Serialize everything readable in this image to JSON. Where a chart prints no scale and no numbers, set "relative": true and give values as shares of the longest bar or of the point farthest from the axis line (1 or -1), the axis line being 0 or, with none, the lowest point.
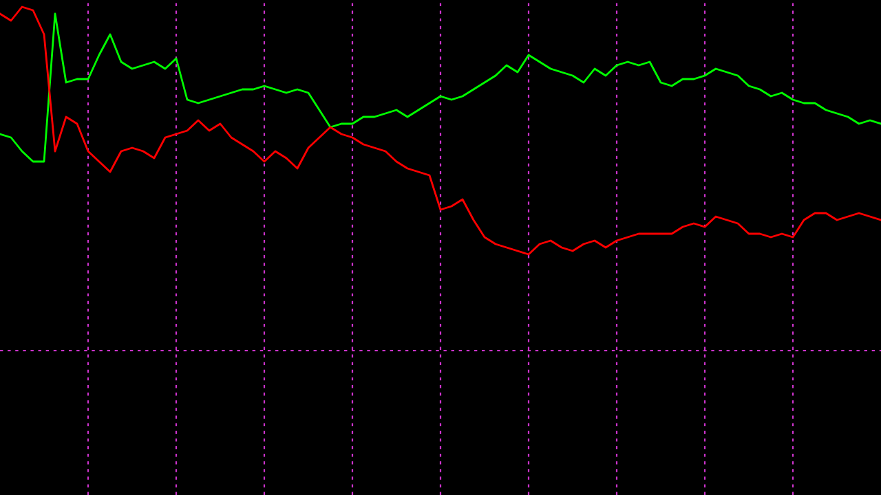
{
  "chart_data": {
    "type": "line",
    "relative": true,
    "grid": "x",
    "legend": false,
    "marker": "none",
    "line_style": "solid",
    "categories": [
      null,
      null,
      null,
      null,
      null,
      null,
      null,
      null,
      null,
      null,
      null,
      null,
      null,
      null,
      null,
      null,
      null,
      null,
      null,
      null,
      null,
      null,
      null,
      null,
      null,
      null,
      null,
      null,
      null,
      null,
      null,
      null,
      null,
      null,
      null,
      null,
      null,
      null,
      null,
      null,
      null,
      null,
      null,
      null,
      null,
      null,
      null,
      null,
      null,
      null,
      null,
      null,
      null,
      null,
      null,
      null,
      null,
      null,
      null,
      null,
      null,
      null,
      null,
      null,
      null,
      null,
      null,
      null,
      null,
      null,
      null,
      null,
      null,
      null,
      null,
      null,
      null,
      null,
      null,
      null,
      null
    ],
    "series": [
      {
        "color": "#00ff00",
        "values": [
          0.63,
          0.62,
          0.58,
          0.55,
          0.55,
          0.98,
          0.78,
          0.79,
          0.79,
          0.86,
          0.92,
          0.84,
          0.82,
          0.83,
          0.84,
          0.82,
          0.85,
          0.73,
          0.72,
          0.73,
          0.74,
          0.75,
          0.76,
          0.76,
          0.77,
          0.76,
          0.75,
          0.76,
          0.75,
          0.7,
          0.65,
          0.66,
          0.66,
          0.68,
          0.68,
          0.69,
          0.7,
          0.68,
          0.7,
          0.72,
          0.74,
          0.73,
          0.74,
          0.76,
          0.78,
          0.8,
          0.83,
          0.81,
          0.86,
          0.84,
          0.82,
          0.81,
          0.8,
          0.78,
          0.82,
          0.8,
          0.83,
          0.84,
          0.83,
          0.84,
          0.78,
          0.77,
          0.79,
          0.79,
          0.8,
          0.82,
          0.81,
          0.8,
          0.77,
          0.76,
          0.74,
          0.75,
          0.73,
          0.72,
          0.72,
          0.7,
          0.69,
          0.68,
          0.66,
          0.67,
          0.66
        ]
      },
      {
        "color": "#ff0000",
        "values": [
          0.98,
          0.96,
          1.0,
          0.99,
          0.92,
          0.58,
          0.68,
          0.66,
          0.58,
          0.55,
          0.52,
          0.58,
          0.59,
          0.58,
          0.56,
          0.62,
          0.63,
          0.64,
          0.67,
          0.64,
          0.66,
          0.62,
          0.6,
          0.58,
          0.55,
          0.58,
          0.56,
          0.53,
          0.59,
          0.62,
          0.65,
          0.63,
          0.62,
          0.6,
          0.59,
          0.58,
          0.55,
          0.53,
          0.52,
          0.51,
          0.41,
          0.42,
          0.44,
          0.38,
          0.33,
          0.31,
          0.3,
          0.29,
          0.28,
          0.31,
          0.32,
          0.3,
          0.29,
          0.31,
          0.32,
          0.3,
          0.32,
          0.33,
          0.34,
          0.34,
          0.34,
          0.34,
          0.36,
          0.37,
          0.36,
          0.39,
          0.38,
          0.37,
          0.34,
          0.34,
          0.33,
          0.34,
          0.33,
          0.38,
          0.4,
          0.4,
          0.38,
          0.39,
          0.4,
          0.39,
          0.38
        ]
      }
    ]
  }
}
